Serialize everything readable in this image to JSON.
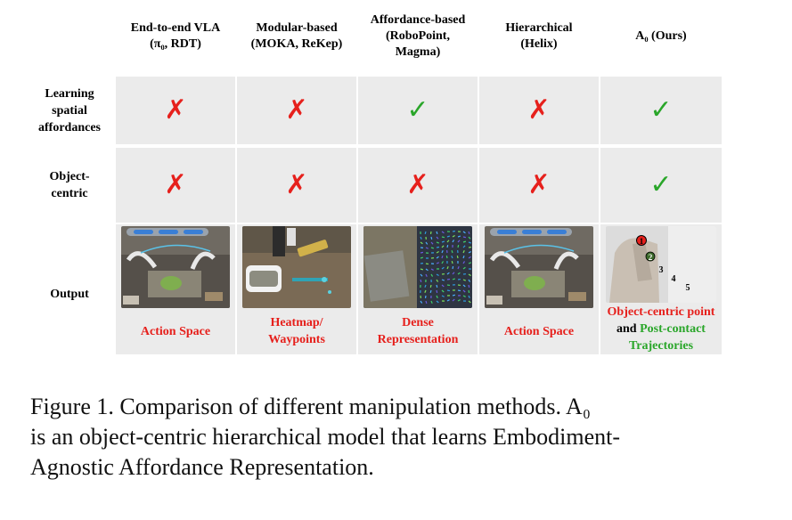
{
  "columns": [
    {
      "line1": "End-to-end VLA",
      "line2": "(π₀, RDT)",
      "line3": ""
    },
    {
      "line1": "Modular-based",
      "line2": "(MOKA, ReKep)",
      "line3": ""
    },
    {
      "line1": "Affordance-based",
      "line2": "(RoboPoint,",
      "line3": "Magma)"
    },
    {
      "line1": "Hierarchical",
      "line2": "(Helix)",
      "line3": ""
    },
    {
      "line1": "A₀ (Ours)",
      "line2": "",
      "line3": ""
    }
  ],
  "rows": [
    {
      "label_line1": "Learning",
      "label_line2": "spatial",
      "label_line3": "affordances",
      "marks": [
        "cross",
        "cross",
        "check",
        "cross",
        "check"
      ]
    },
    {
      "label_line1": "Object-",
      "label_line2": "centric",
      "label_line3": "",
      "marks": [
        "cross",
        "cross",
        "cross",
        "cross",
        "check"
      ]
    }
  ],
  "symbols": {
    "cross": "✗",
    "check": "✓"
  },
  "colors": {
    "cross": "#e6201c",
    "check": "#2aa62a",
    "cell_bg": "#ebebeb"
  },
  "output_row": {
    "label": "Output",
    "cells": [
      {
        "line1": "Action Space",
        "line2": "",
        "image": "dual-arm-robot-workspace"
      },
      {
        "line1": "Heatmap/",
        "line2": "Waypoints",
        "image": "robot-gripper-heatmap"
      },
      {
        "line1": "Dense",
        "line2": "Representation",
        "image": "dense-flow-field"
      },
      {
        "line1": "Action Space",
        "line2": "",
        "image": "dual-arm-robot-workspace"
      },
      {
        "line1": "",
        "line2": "",
        "image": "object-centric-keypoints"
      }
    ],
    "ours_label": {
      "line1": "Object-centric point",
      "line2_prefix": "and ",
      "line2_green": "Post-contact",
      "line3": "Trajectories"
    },
    "keypoints": [
      "1",
      "2",
      "3",
      "4",
      "5"
    ]
  },
  "caption": {
    "line1": "Figure 1.  Comparison of different manipulation methods.  A₀",
    "line2": "is an object-centric hierarchical model that learns Embodiment-",
    "line3": "Agnostic Affordance Representation."
  }
}
